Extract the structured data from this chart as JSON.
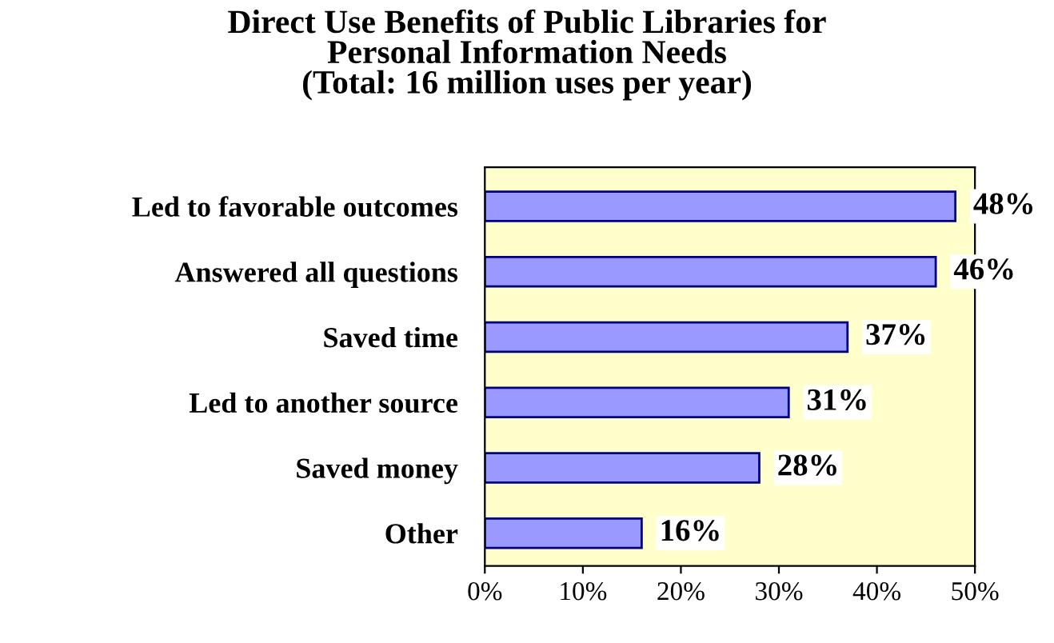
{
  "chart_data": {
    "type": "bar",
    "orientation": "horizontal",
    "title": "Direct Use Benefits of Public Libraries for\nPersonal Information Needs\n(Total: 16 million uses per year)",
    "categories": [
      "Led to favorable outcomes",
      "Answered all questions",
      "Saved time",
      "Led to another source",
      "Saved money",
      "Other"
    ],
    "values": [
      48,
      46,
      37,
      31,
      28,
      16
    ],
    "value_labels": [
      "48%",
      "46%",
      "37%",
      "31%",
      "28%",
      "16%"
    ],
    "color": "#9999ff",
    "xlim": [
      0,
      50
    ],
    "xticks": [
      {
        "value": 0,
        "label": "0%"
      },
      {
        "value": 10,
        "label": "10%"
      },
      {
        "value": 20,
        "label": "20%"
      },
      {
        "value": 30,
        "label": "30%"
      },
      {
        "value": 40,
        "label": "40%"
      },
      {
        "value": 50,
        "label": "50%"
      }
    ],
    "grid": false
  }
}
